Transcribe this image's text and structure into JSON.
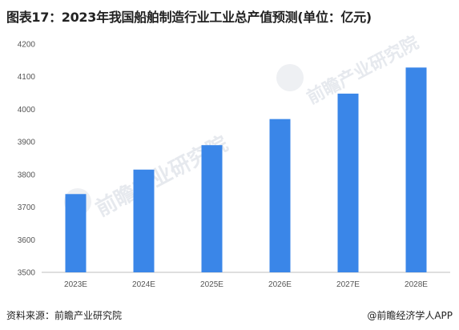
{
  "title": "图表17：2023年我国船舶制造行业工业总产值预测(单位：亿元)",
  "footer": {
    "source": "资料来源：前瞻产业研究院",
    "brand": "@前瞻经济学人APP"
  },
  "colors": {
    "bar": "#3a86e8",
    "axis": "#bfbfbf",
    "grid": "#d9d9d9"
  },
  "chart_data": {
    "type": "bar",
    "title": "图表17：2023年我国船舶制造行业工业总产值预测(单位：亿元)",
    "categories": [
      "2023E",
      "2024E",
      "2025E",
      "2026E",
      "2027E",
      "2028E"
    ],
    "values": [
      3740,
      3815,
      3890,
      3970,
      4048,
      4128
    ],
    "ylim": [
      3500,
      4200
    ],
    "yticks": [
      3500,
      3600,
      3700,
      3800,
      3900,
      4000,
      4100,
      4200
    ],
    "xlabel": "",
    "ylabel": "",
    "grid": false,
    "legend": "none"
  }
}
